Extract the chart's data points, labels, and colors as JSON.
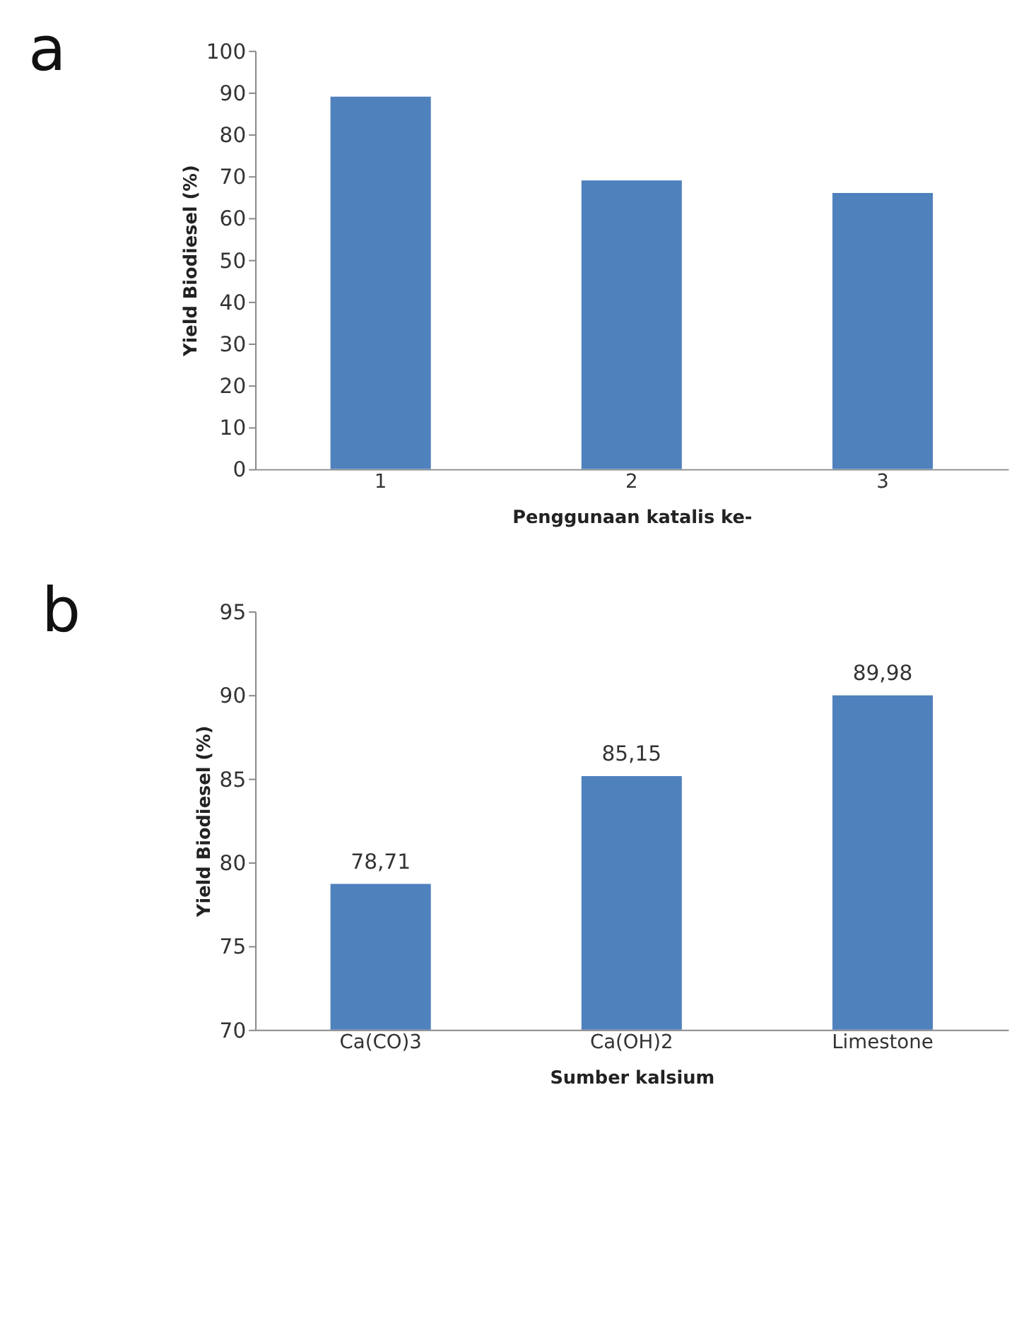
{
  "chart_data": [
    {
      "type": "bar",
      "title": "a",
      "xlabel": "Penggunaan katalis ke-",
      "ylabel": "Yield Biodiesel (%)",
      "categories": [
        "1",
        "2",
        "3"
      ],
      "values": [
        89,
        69,
        66
      ],
      "color": "#4f81bd",
      "ylim": [
        0,
        100
      ],
      "yticks": [
        0,
        10,
        20,
        30,
        40,
        50,
        60,
        70,
        80,
        90,
        100
      ],
      "grid": false
    },
    {
      "type": "bar",
      "title": "b",
      "xlabel": "Sumber kalsium",
      "ylabel": "Yield Biodiesel (%)",
      "categories": [
        "Ca(CO)3",
        "Ca(OH)2",
        "Limestone"
      ],
      "values": [
        78.71,
        85.15,
        89.98
      ],
      "value_labels": [
        "78,71",
        "85,15",
        "89,98"
      ],
      "color": "#4f81bd",
      "ylim": [
        70,
        95
      ],
      "yticks": [
        70,
        75,
        80,
        85,
        90,
        95
      ],
      "grid": false
    }
  ]
}
